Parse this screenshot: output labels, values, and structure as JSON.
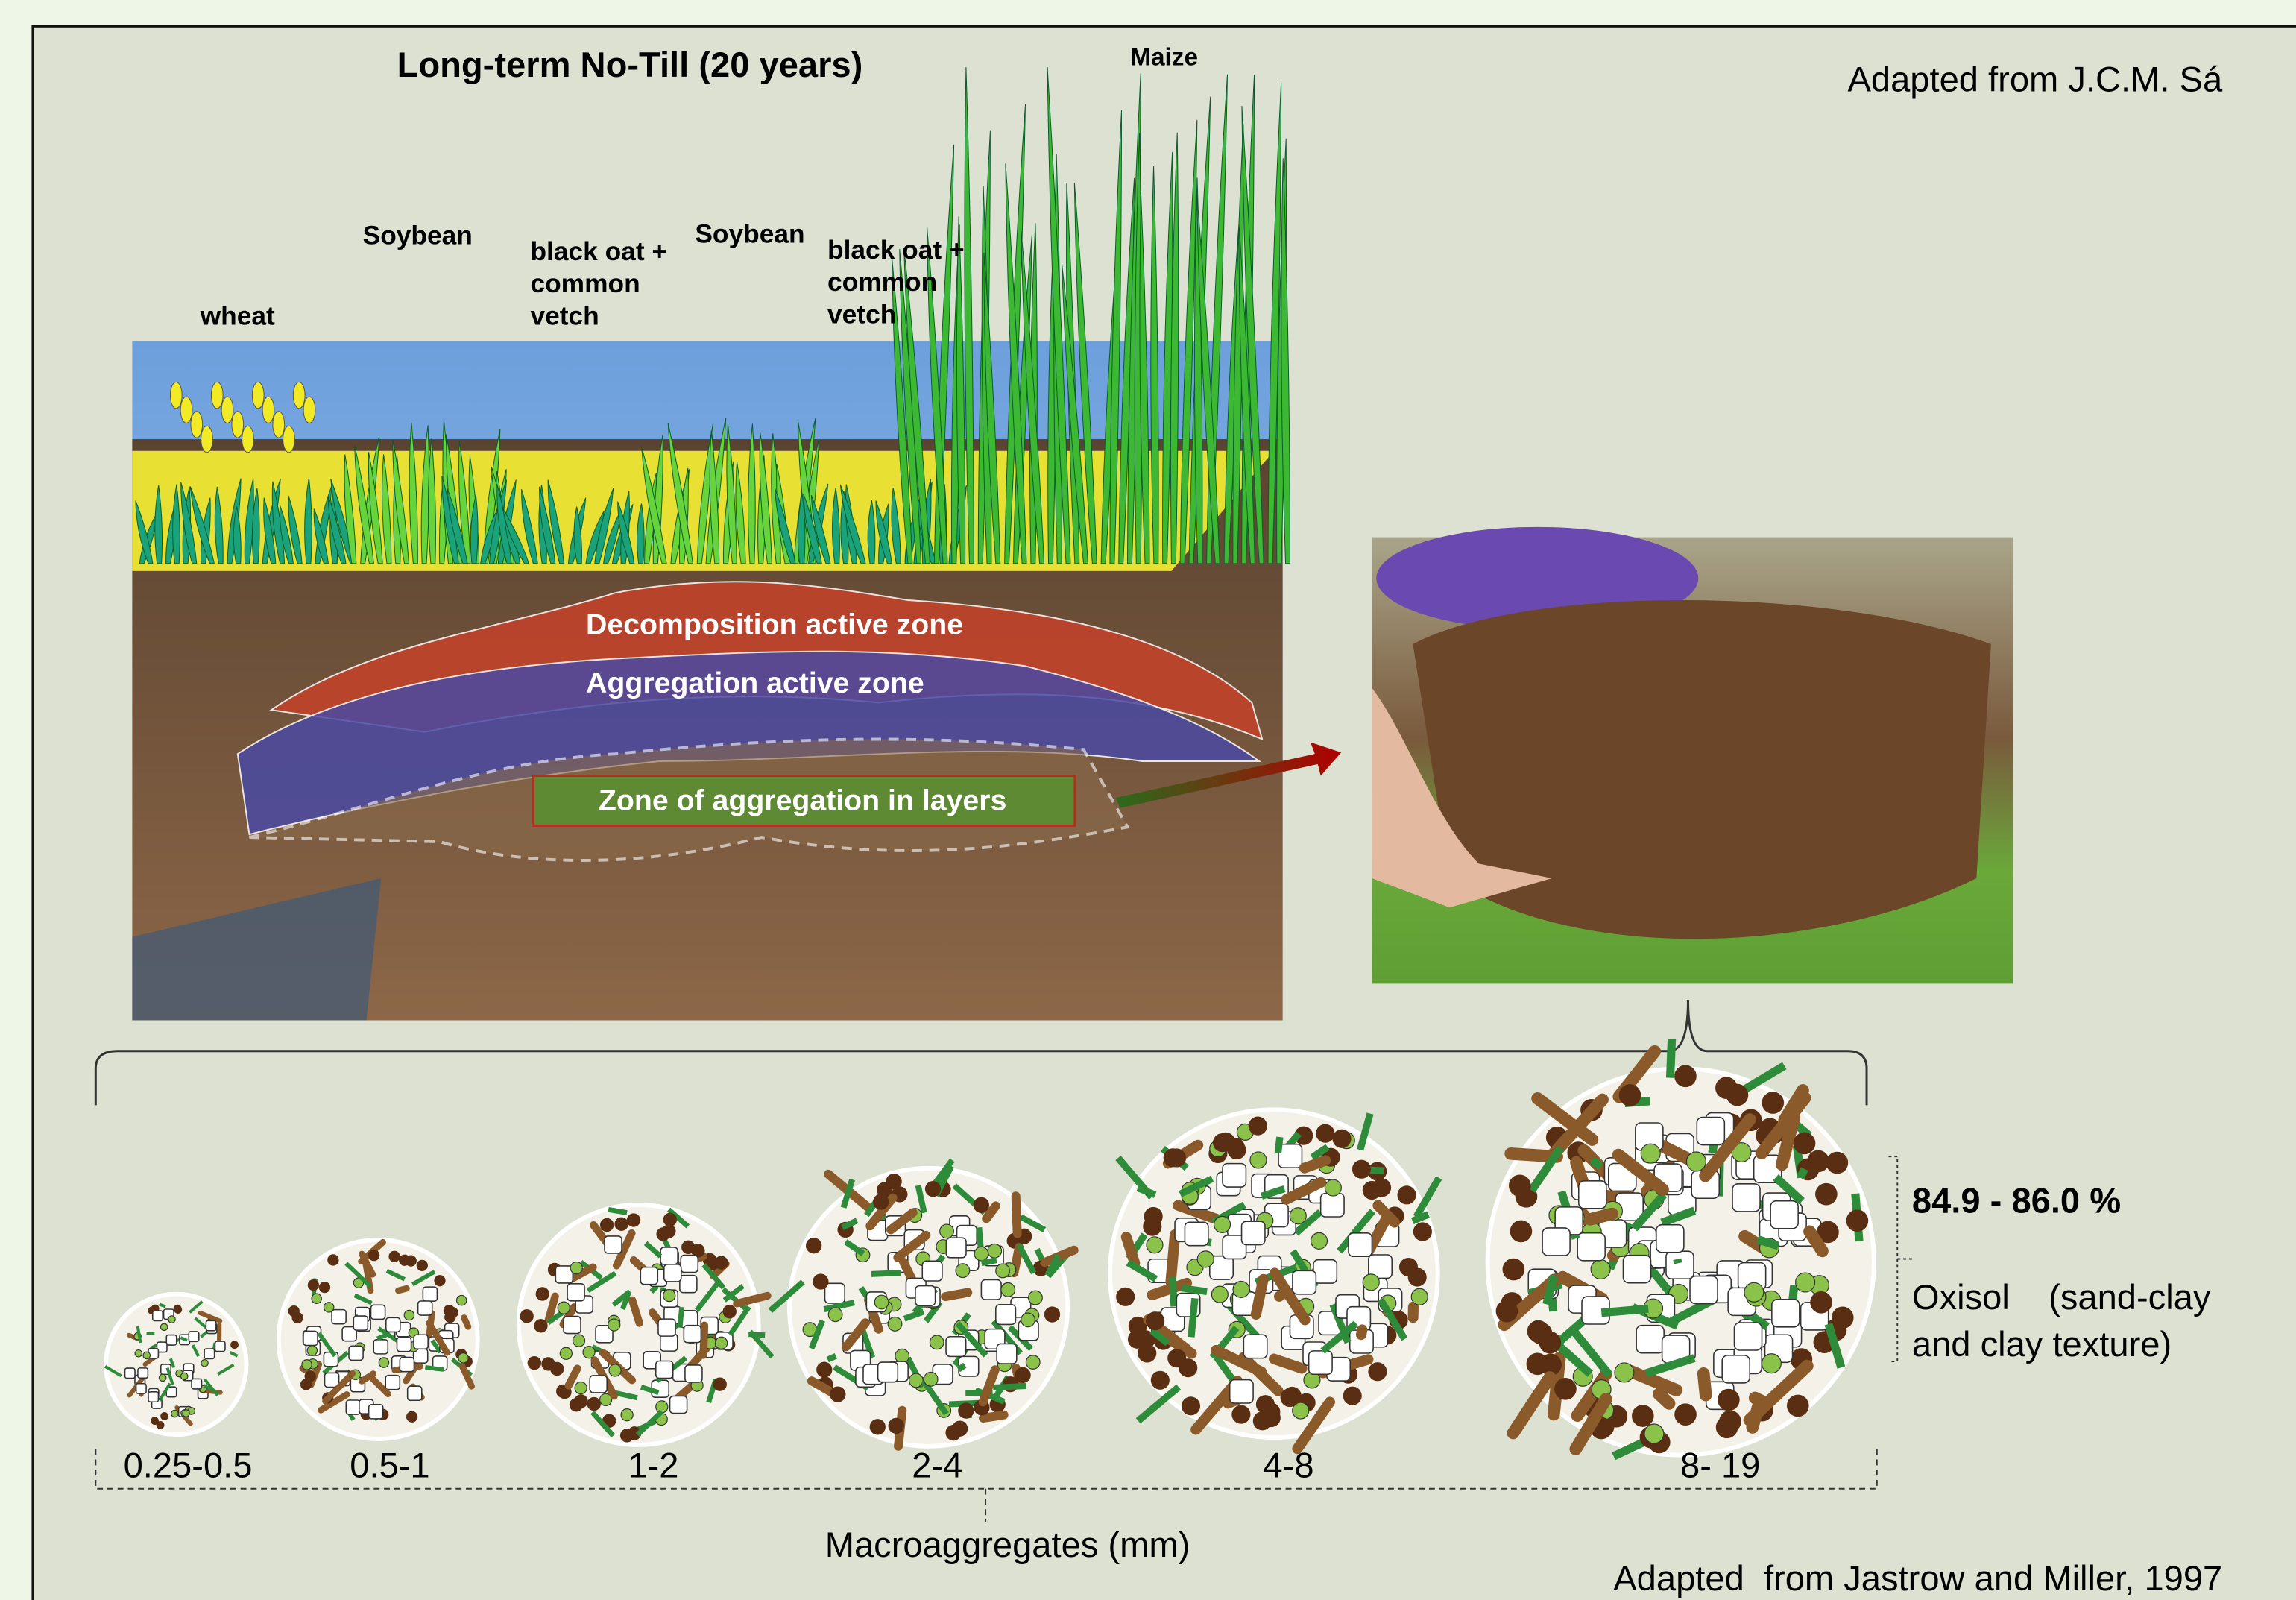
{
  "header": {
    "title": "Long-term  No-Till  (20 years)",
    "credit": "Adapted from J.C.M. Sá"
  },
  "crops": [
    {
      "lines": [
        "wheat"
      ]
    },
    {
      "lines": [
        "Soybean"
      ]
    },
    {
      "lines": [
        "black oat +",
        "common",
        "vetch"
      ]
    },
    {
      "lines": [
        "Soybean"
      ]
    },
    {
      "lines": [
        "black oat +",
        "common",
        "vetch"
      ]
    },
    {
      "lines": [
        "Maize"
      ]
    }
  ],
  "zones": [
    "Decomposition active zone",
    "Aggregation active zone",
    "Zone of aggregation in layers"
  ],
  "aggregates": {
    "sizes": [
      "0.25-0.5",
      "0.5-1",
      "1-2",
      "2-4",
      "4-8",
      "8- 19"
    ],
    "axis_label": "Macroaggregates (mm)"
  },
  "share": {
    "value": "84.9 - 86.0 %",
    "soil": [
      "Oxisol    (sand-clay",
      "and clay texture)"
    ]
  },
  "footer": {
    "credit": "Adapted  from Jastrow and Miller, 1997"
  }
}
